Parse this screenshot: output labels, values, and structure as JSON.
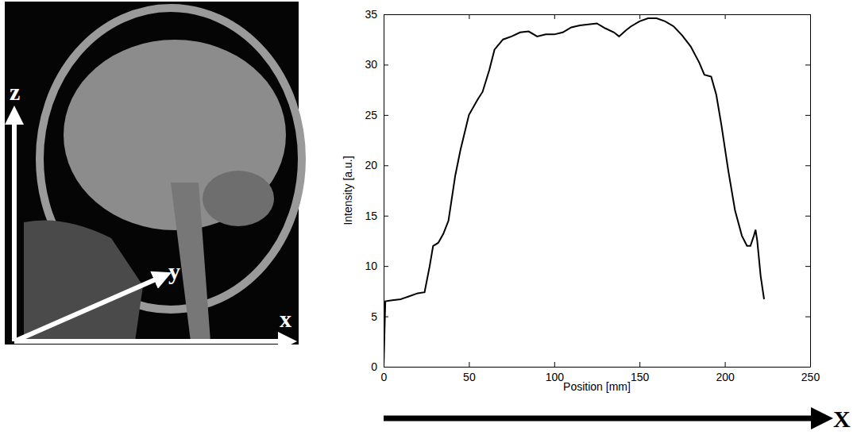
{
  "chart_data": {
    "type": "line",
    "xlabel": "Position [mm]",
    "ylabel": "Intensity [a.u.]",
    "annotations": [
      "z",
      "y",
      "x",
      "X"
    ],
    "x": [
      0,
      1,
      5,
      10,
      15,
      20,
      24,
      27,
      29,
      32,
      35,
      38,
      42,
      45,
      50,
      55,
      58,
      62,
      65,
      70,
      75,
      80,
      85,
      90,
      95,
      100,
      105,
      110,
      115,
      120,
      125,
      130,
      135,
      138,
      142,
      145,
      150,
      155,
      160,
      165,
      170,
      175,
      180,
      185,
      188,
      192,
      195,
      198,
      202,
      206,
      210,
      213,
      215,
      217,
      218,
      219,
      221,
      223
    ],
    "values": [
      0,
      6.5,
      6.6,
      6.7,
      7.0,
      7.3,
      7.4,
      10,
      12,
      12.3,
      13.2,
      14.5,
      19,
      21.5,
      25,
      26.5,
      27.3,
      29.5,
      31.5,
      32.5,
      32.8,
      33.2,
      33.3,
      32.8,
      33.0,
      33.0,
      33.2,
      33.7,
      33.9,
      34.0,
      34.1,
      33.6,
      33.2,
      32.8,
      33.4,
      33.8,
      34.3,
      34.6,
      34.6,
      34.3,
      33.8,
      32.9,
      31.8,
      30.2,
      29.0,
      28.8,
      27.0,
      24.0,
      19.5,
      15.5,
      13,
      12,
      12,
      13,
      13.6,
      12.5,
      9,
      6.7
    ],
    "color": "#000000",
    "xlim": [
      0,
      250
    ],
    "ylim": [
      0,
      35
    ],
    "xticks": [
      0,
      50,
      100,
      150,
      200,
      250
    ],
    "yticks": [
      0,
      5,
      10,
      15,
      20,
      25,
      30,
      35
    ],
    "grid": false
  }
}
